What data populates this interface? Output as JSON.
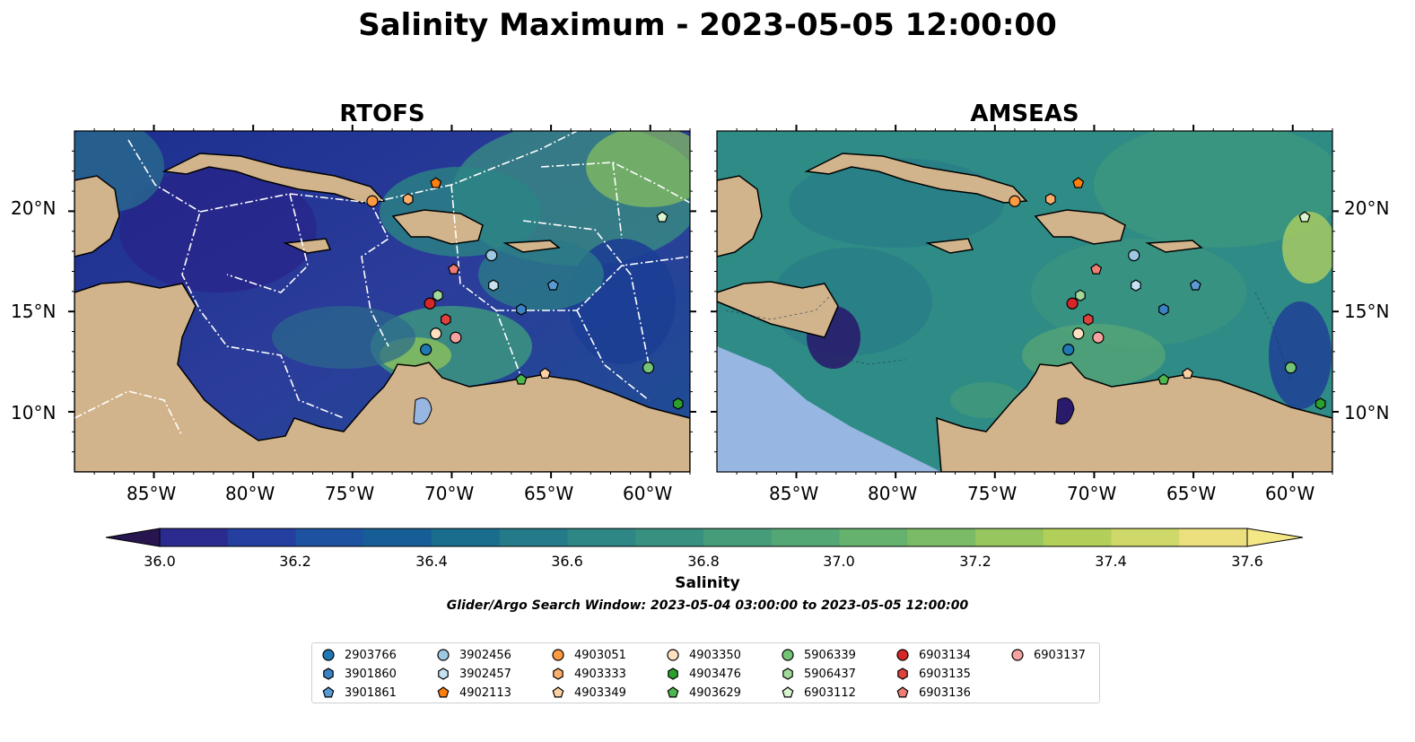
{
  "title": "Salinity Maximum - 2023-05-05 12:00:00",
  "panels": [
    {
      "title": "RTOFS"
    },
    {
      "title": "AMSEAS"
    }
  ],
  "axes": {
    "lon_ticks": [
      "85°W",
      "80°W",
      "75°W",
      "70°W",
      "65°W",
      "60°W"
    ],
    "lon_values": [
      -85,
      -80,
      -75,
      -70,
      -65,
      -60
    ],
    "lat_ticks": [
      "20°N",
      "15°N",
      "10°N"
    ],
    "lat_values": [
      20,
      15,
      10
    ],
    "lon_range": [
      -89,
      -58
    ],
    "lat_range": [
      7,
      24
    ]
  },
  "colorbar": {
    "label": "Salinity",
    "ticks": [
      "36.0",
      "36.2",
      "36.4",
      "36.6",
      "36.8",
      "37.0",
      "37.2",
      "37.4",
      "37.6"
    ],
    "range": [
      36.0,
      37.6
    ],
    "colors": [
      "#27154f",
      "#2b2a8e",
      "#243fa0",
      "#1c52a0",
      "#155f96",
      "#1b6d8e",
      "#247a89",
      "#2e8685",
      "#389180",
      "#459c79",
      "#53a774",
      "#64b26d",
      "#7cbb65",
      "#97c55e",
      "#b2cf5a",
      "#cfd96a",
      "#ecdf7e"
    ],
    "extend": "both"
  },
  "search_window": "Glider/Argo Search Window: 2023-05-04 03:00:00 to 2023-05-05 12:00:00",
  "colors": {
    "land": "#d2b48c",
    "inland_water": "#97b6e1",
    "rtofs_ocean": "#2a3b97",
    "amseas_ocean": "#2f8b86"
  },
  "floats": [
    {
      "id": "2903766",
      "marker": "circle",
      "color": "#1f77b4",
      "lon": -71.3,
      "lat": 13.1
    },
    {
      "id": "3901860",
      "marker": "hexagon",
      "color": "#3b82c4",
      "lon": -66.5,
      "lat": 15.1
    },
    {
      "id": "3901861",
      "marker": "pentagon",
      "color": "#5b9bd5",
      "lon": -64.9,
      "lat": 16.3
    },
    {
      "id": "3902456",
      "marker": "circle",
      "color": "#9ecae1",
      "lon": -68.0,
      "lat": 17.8
    },
    {
      "id": "3902457",
      "marker": "hexagon",
      "color": "#c6e2f2",
      "lon": -67.9,
      "lat": 16.3
    },
    {
      "id": "4902113",
      "marker": "pentagon",
      "color": "#ff7f0e",
      "lon": -70.8,
      "lat": 21.4
    },
    {
      "id": "4903051",
      "marker": "circle",
      "color": "#fd9940",
      "lon": -74.0,
      "lat": 20.5
    },
    {
      "id": "4903333",
      "marker": "hexagon",
      "color": "#fdae6b",
      "lon": -72.2,
      "lat": 20.6
    },
    {
      "id": "4903349",
      "marker": "pentagon",
      "color": "#fdd0a2",
      "lon": -65.3,
      "lat": 11.9
    },
    {
      "id": "4903350",
      "marker": "circle",
      "color": "#ffe0c0",
      "lon": -70.8,
      "lat": 13.9
    },
    {
      "id": "4903476",
      "marker": "hexagon",
      "color": "#2ca02c",
      "lon": -58.6,
      "lat": 10.4
    },
    {
      "id": "4903629",
      "marker": "pentagon",
      "color": "#4db84d",
      "lon": -66.5,
      "lat": 11.6
    },
    {
      "id": "5906339",
      "marker": "circle",
      "color": "#74c476",
      "lon": -60.1,
      "lat": 12.2
    },
    {
      "id": "5906437",
      "marker": "hexagon",
      "color": "#a1d99b",
      "lon": -70.7,
      "lat": 15.8
    },
    {
      "id": "6903112",
      "marker": "pentagon",
      "color": "#d9f4d0",
      "lon": -59.4,
      "lat": 19.7
    },
    {
      "id": "6903134",
      "marker": "circle",
      "color": "#d62728",
      "lon": -71.1,
      "lat": 15.4
    },
    {
      "id": "6903135",
      "marker": "hexagon",
      "color": "#e0413f",
      "lon": -70.3,
      "lat": 14.6
    },
    {
      "id": "6903136",
      "marker": "pentagon",
      "color": "#f07c74",
      "lon": -69.9,
      "lat": 17.1
    },
    {
      "id": "6903137",
      "marker": "circle",
      "color": "#f4a3a0",
      "lon": -69.8,
      "lat": 13.7
    }
  ]
}
